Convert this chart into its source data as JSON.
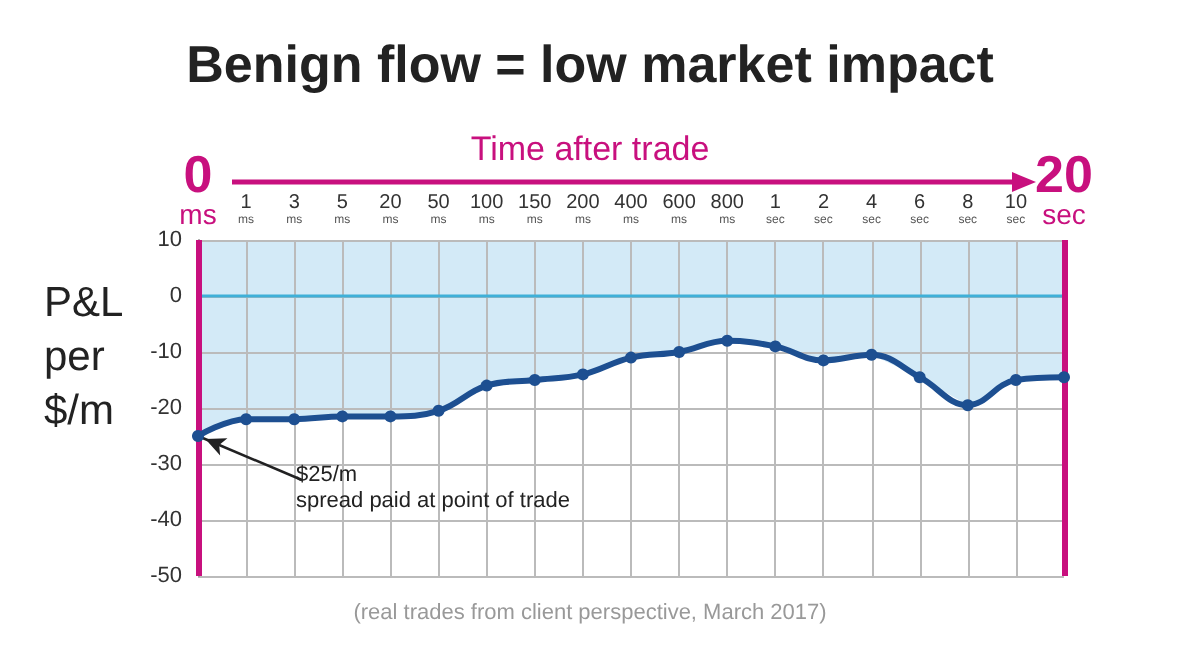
{
  "chart_data": {
    "type": "line",
    "title": "Benign flow = low market impact",
    "xlabel": "Time after trade",
    "ylabel": "P&L per $/m",
    "categories": [
      "0 ms",
      "1 ms",
      "3 ms",
      "5 ms",
      "20 ms",
      "50 ms",
      "100 ms",
      "150 ms",
      "200 ms",
      "400 ms",
      "600 ms",
      "800 ms",
      "1 sec",
      "2 sec",
      "4 sec",
      "6 sec",
      "8 sec",
      "10 sec",
      "20 sec"
    ],
    "series": [
      {
        "color": "#1d4f91",
        "values": [
          -25,
          -22,
          -22,
          -21.5,
          -21.5,
          -20.5,
          -16,
          -15,
          -14,
          -11,
          -10,
          -8,
          -9,
          -11.5,
          -10.5,
          -14.5,
          -19.5,
          -15,
          -14.5
        ]
      }
    ],
    "ylim": [
      -50,
      10
    ],
    "yticks": [
      -50,
      -40,
      -30,
      -20,
      -10,
      0,
      10
    ],
    "grid": true,
    "marker": "circle",
    "line_style": "solid",
    "ref_lines": [
      {
        "axis": "y",
        "value": 0,
        "color": "#3fb0d8"
      },
      {
        "axis": "x",
        "value": "0 ms",
        "color": "#c8107e"
      },
      {
        "axis": "x",
        "value": "20 sec",
        "color": "#c8107e"
      }
    ],
    "annotations": [
      {
        "text": "$25/m\nspread paid at point of trade",
        "x": "0 ms",
        "y": -25
      },
      "(real trades from client perspective, March 2017)"
    ]
  }
}
